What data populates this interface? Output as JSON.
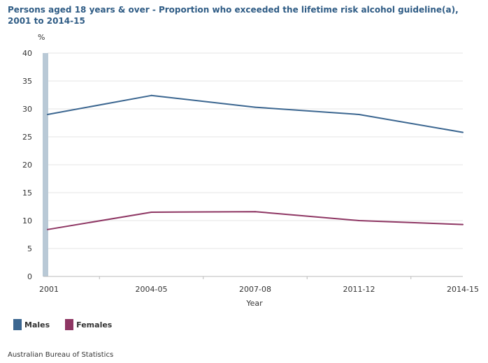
{
  "title": "Persons aged 18 years & over - Proportion who exceeded the lifetime risk alcohol guideline(a), 2001 to 2014-15",
  "source": "Australian Bureau of Statistics",
  "colors": {
    "males": "#3b6690",
    "females": "#8e3663",
    "axis_band": "#b9c9d6",
    "grid": "#e6e6e6"
  },
  "chart_data": {
    "type": "line",
    "title": "Persons aged 18 years & over - Proportion who exceeded the lifetime risk alcohol guideline(a), 2001 to 2014-15",
    "xlabel": "Year",
    "ylabel": "%",
    "categories": [
      "2001",
      "2004-05",
      "2007-08",
      "2011-12",
      "2014-15"
    ],
    "yticks": [
      "0",
      "5",
      "10",
      "15",
      "20",
      "25",
      "30",
      "35",
      "40"
    ],
    "ylim": [
      0,
      40
    ],
    "grid": true,
    "legend_position": "bottom-left",
    "series": [
      {
        "name": "Males",
        "values": [
          29.0,
          32.4,
          30.3,
          29.0,
          25.8
        ]
      },
      {
        "name": "Females",
        "values": [
          8.4,
          11.5,
          11.6,
          10.0,
          9.3
        ]
      }
    ]
  }
}
